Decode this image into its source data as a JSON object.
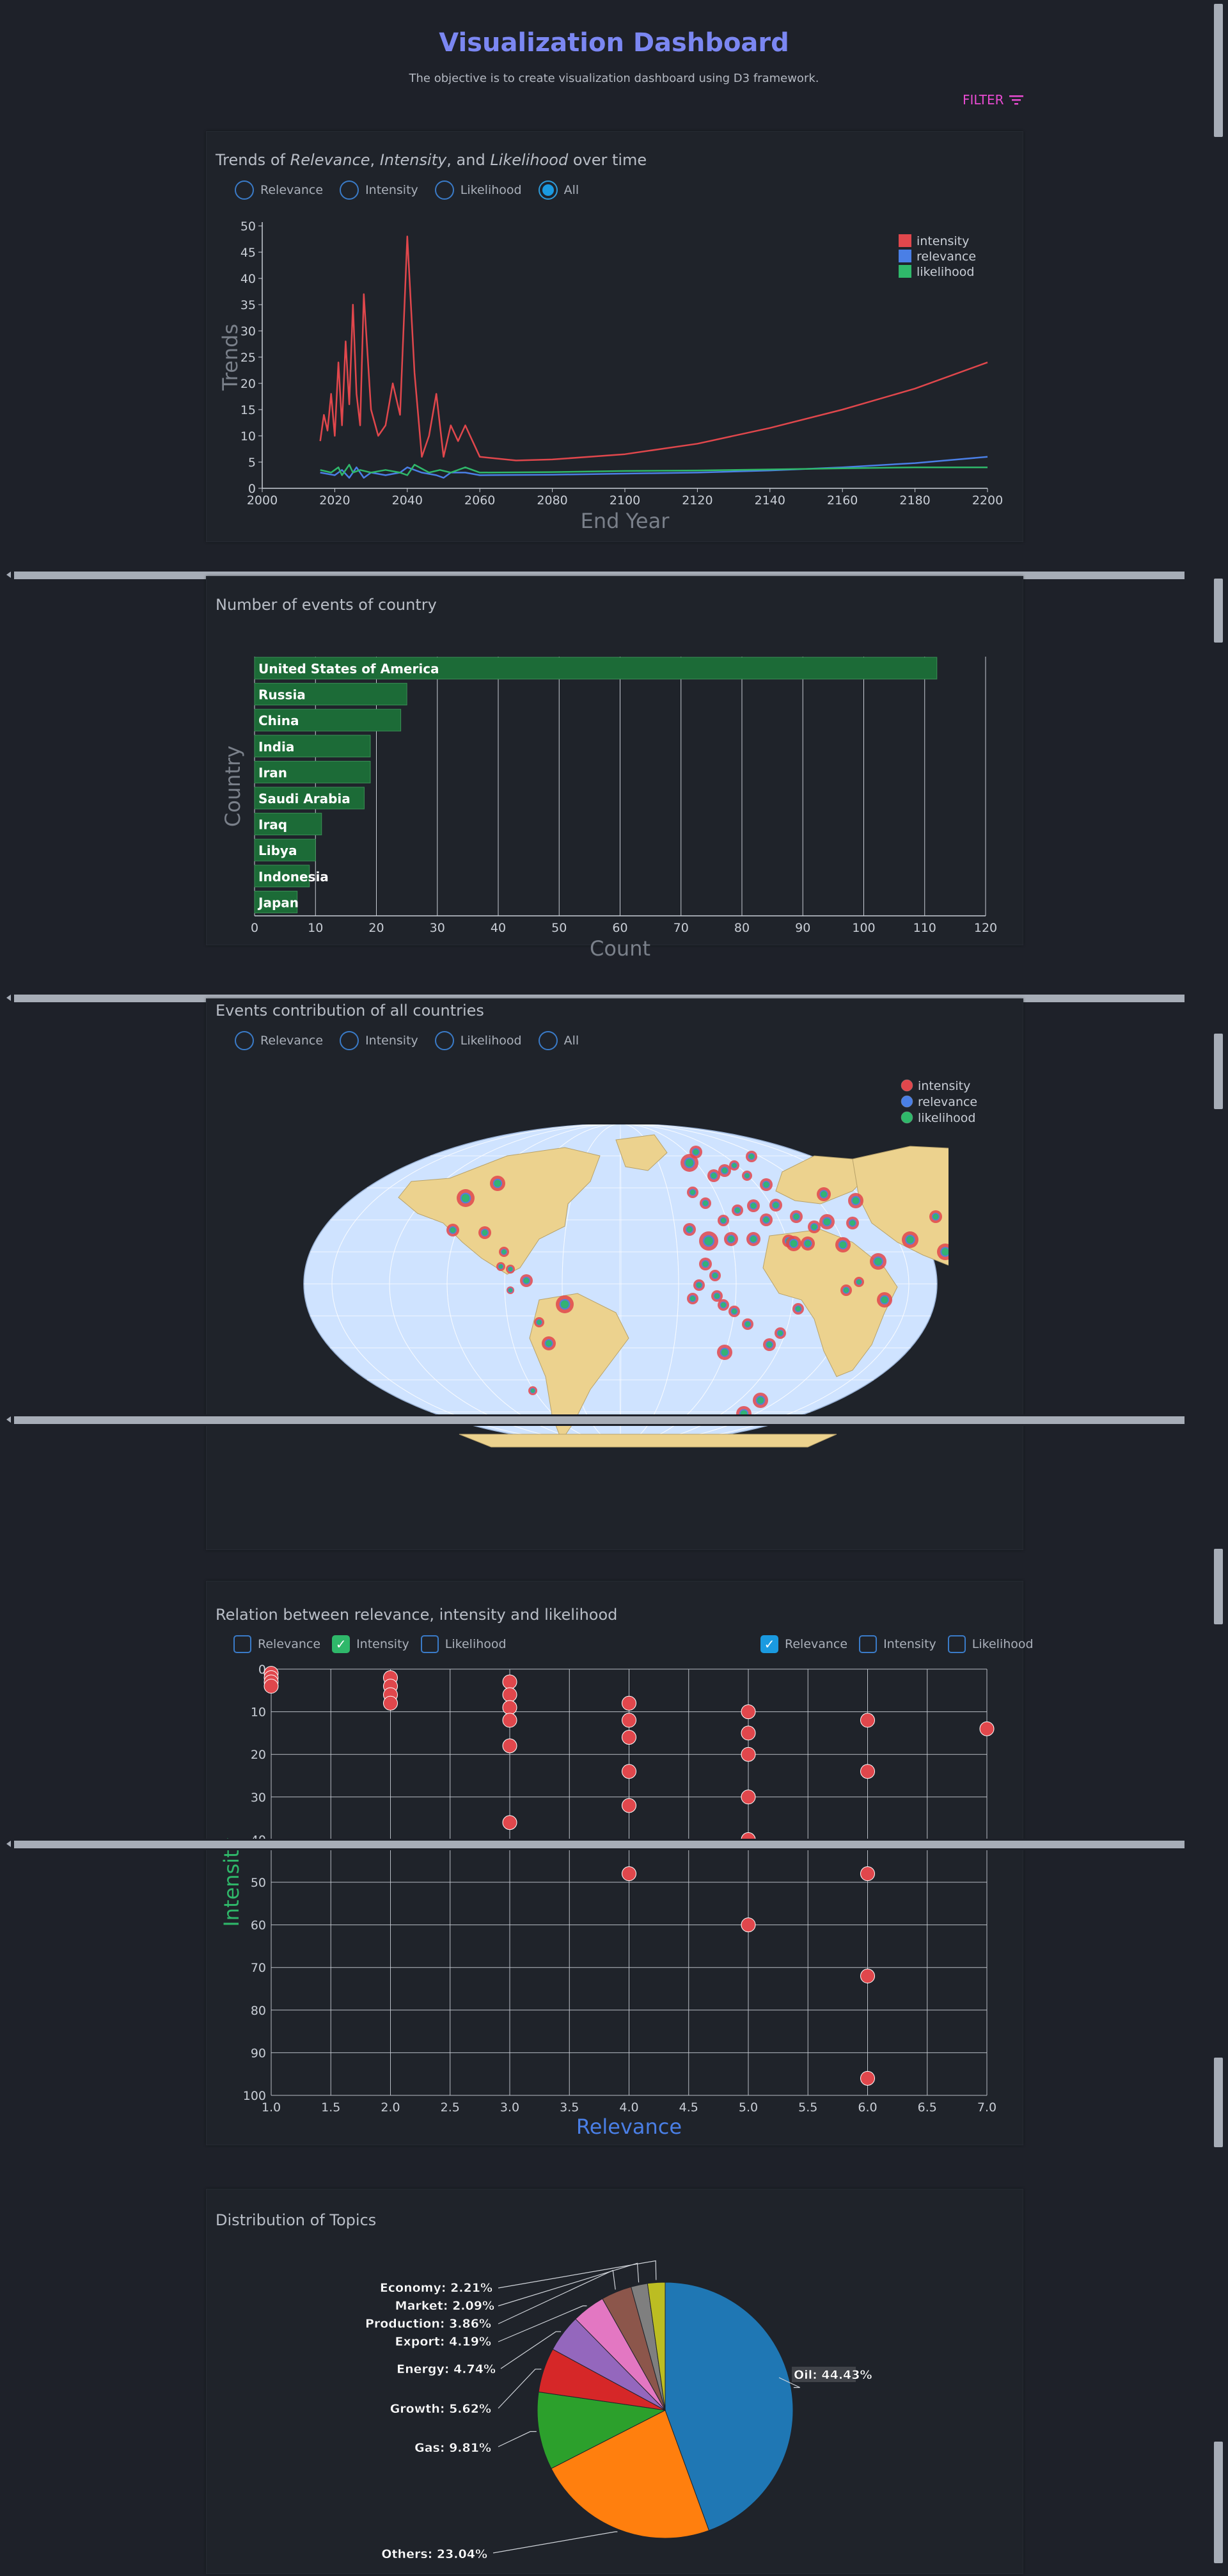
{
  "header": {
    "title": "Visualization Dashboard",
    "subtitle": "The objective is to create visualization dashboard using D3 framework.",
    "filter_label": "FILTER"
  },
  "trends": {
    "title_parts": [
      "Trends of ",
      "Relevance",
      ", ",
      "Intensity",
      ", and ",
      "Likelihood",
      " over time"
    ],
    "radios": [
      {
        "label": "Relevance",
        "checked": false
      },
      {
        "label": "Intensity",
        "checked": false
      },
      {
        "label": "Likelihood",
        "checked": false
      },
      {
        "label": "All",
        "checked": true
      }
    ],
    "chart_data": {
      "type": "line",
      "xlabel": "End Year",
      "ylabel": "Trends",
      "xlim": [
        2000,
        2200
      ],
      "ylim": [
        0,
        50
      ],
      "xticks": [
        2000,
        2020,
        2040,
        2060,
        2080,
        2100,
        2120,
        2140,
        2160,
        2180,
        2200
      ],
      "yticks": [
        0,
        5,
        10,
        15,
        20,
        25,
        30,
        35,
        40,
        45,
        50
      ],
      "legend": [
        "intensity",
        "relevance",
        "likelihood"
      ],
      "colors": {
        "intensity": "#e0474c",
        "relevance": "#4a7fe6",
        "likelihood": "#2fb86a"
      },
      "series": [
        {
          "name": "intensity",
          "x": [
            2016,
            2017,
            2018,
            2019,
            2020,
            2021,
            2022,
            2023,
            2024,
            2025,
            2026,
            2027,
            2028,
            2030,
            2032,
            2034,
            2036,
            2038,
            2040,
            2042,
            2044,
            2046,
            2048,
            2050,
            2052,
            2054,
            2056,
            2060,
            2070,
            2080,
            2100,
            2120,
            2140,
            2160,
            2180,
            2200
          ],
          "y": [
            9,
            14,
            11,
            18,
            10,
            24,
            12,
            28,
            16,
            35,
            18,
            12,
            37,
            15,
            10,
            12,
            20,
            14,
            48,
            22,
            6,
            10,
            18,
            6,
            12,
            9,
            12,
            6,
            5.3,
            5.5,
            6.5,
            8.5,
            11.5,
            15,
            19,
            24
          ]
        },
        {
          "name": "relevance",
          "x": [
            2016,
            2020,
            2022,
            2024,
            2026,
            2028,
            2030,
            2034,
            2038,
            2040,
            2044,
            2048,
            2050,
            2052,
            2056,
            2060,
            2080,
            2100,
            2120,
            2140,
            2160,
            2180,
            2200
          ],
          "y": [
            3,
            2.5,
            3.5,
            2,
            4,
            2,
            3,
            2.5,
            3,
            4,
            3,
            2.5,
            2,
            3,
            3,
            2.5,
            2.6,
            2.8,
            3,
            3.4,
            4,
            4.8,
            6
          ]
        },
        {
          "name": "likelihood",
          "x": [
            2016,
            2019,
            2021,
            2022,
            2024,
            2025,
            2027,
            2030,
            2034,
            2038,
            2040,
            2042,
            2046,
            2049,
            2052,
            2056,
            2060,
            2080,
            2100,
            2120,
            2140,
            2160,
            2180,
            2200
          ],
          "y": [
            3.5,
            3,
            4,
            2.5,
            4.5,
            3,
            3.5,
            3,
            3.5,
            3,
            2.5,
            4.5,
            3,
            3.5,
            3,
            4,
            3,
            3.1,
            3.3,
            3.4,
            3.6,
            3.8,
            4,
            4
          ]
        }
      ]
    }
  },
  "countries": {
    "title": "Number of events of country",
    "chart_data": {
      "type": "bar",
      "orientation": "horizontal",
      "xlabel": "Count",
      "ylabel": "Country",
      "xlim": [
        0,
        120
      ],
      "xticks": [
        0,
        10,
        20,
        30,
        40,
        50,
        60,
        70,
        80,
        90,
        100,
        110,
        120
      ],
      "categories": [
        "United States of America",
        "Russia",
        "China",
        "India",
        "Iran",
        "Saudi Arabia",
        "Iraq",
        "Libya",
        "Indonesia",
        "Japan"
      ],
      "values": [
        112,
        25,
        24,
        19,
        19,
        18,
        11,
        10,
        9,
        7
      ],
      "color": "#1c6b37"
    }
  },
  "map": {
    "title": "Events contribution of all countries",
    "radios": [
      {
        "label": "Relevance",
        "checked": false
      },
      {
        "label": "Intensity",
        "checked": false
      },
      {
        "label": "Likelihood",
        "checked": false
      },
      {
        "label": "All",
        "checked": false
      }
    ],
    "legend": [
      "intensity",
      "relevance",
      "likelihood"
    ],
    "colors": {
      "ocean": "#cfe3ff",
      "land": "#ecd28e",
      "intensity": "#e0474c",
      "relevance": "#4a7fe6",
      "likelihood": "#2fb86a"
    }
  },
  "relation": {
    "title": "Relation between relevance, intensity and likelihood",
    "y_checks": [
      {
        "label": "Relevance",
        "checked": false
      },
      {
        "label": "Intensity",
        "checked": true
      },
      {
        "label": "Likelihood",
        "checked": false
      }
    ],
    "x_checks": [
      {
        "label": "Relevance",
        "checked": true
      },
      {
        "label": "Intensity",
        "checked": false
      },
      {
        "label": "Likelihood",
        "checked": false
      }
    ],
    "chart_data": {
      "type": "scatter",
      "xlabel": "Relevance",
      "ylabel": "Intensity",
      "xlim": [
        1,
        7
      ],
      "ylim": [
        0,
        100
      ],
      "xticks": [
        "1.0",
        "1.5",
        "2.0",
        "2.5",
        "3.0",
        "3.5",
        "4.0",
        "4.5",
        "5.0",
        "5.5",
        "6.0",
        "6.5",
        "7.0"
      ],
      "yticks": [
        0,
        10,
        20,
        30,
        40,
        50,
        60,
        70,
        80,
        90,
        100
      ],
      "points": [
        [
          1,
          1
        ],
        [
          1,
          2
        ],
        [
          1,
          3
        ],
        [
          1,
          4
        ],
        [
          2,
          2
        ],
        [
          2,
          4
        ],
        [
          2,
          6
        ],
        [
          2,
          8
        ],
        [
          3,
          3
        ],
        [
          3,
          6
        ],
        [
          3,
          9
        ],
        [
          3,
          12
        ],
        [
          3,
          18
        ],
        [
          3,
          36
        ],
        [
          4,
          8
        ],
        [
          4,
          12
        ],
        [
          4,
          16
        ],
        [
          4,
          24
        ],
        [
          4,
          32
        ],
        [
          4,
          48
        ],
        [
          5,
          10
        ],
        [
          5,
          15
        ],
        [
          5,
          20
        ],
        [
          5,
          30
        ],
        [
          5,
          40
        ],
        [
          5,
          60
        ],
        [
          6,
          12
        ],
        [
          6,
          24
        ],
        [
          6,
          48
        ],
        [
          6,
          72
        ],
        [
          6,
          96
        ],
        [
          7,
          14
        ]
      ],
      "color": "#e0474c"
    }
  },
  "topics": {
    "title": "Distribution of Topics",
    "chart_data": {
      "type": "pie",
      "labels": [
        "Oil: 44.43%",
        "Others: 23.04%",
        "Gas: 9.81%",
        "Growth: 5.62%",
        "Energy: 4.74%",
        "Export: 4.19%",
        "Production: 3.86%",
        "Market: 2.09%",
        "Economy: 2.21%"
      ],
      "values": [
        44.43,
        23.04,
        9.81,
        5.62,
        4.74,
        4.19,
        3.86,
        2.09,
        2.21
      ],
      "colors": [
        "#1f77b4",
        "#ff7f0e",
        "#2ca02c",
        "#d62728",
        "#9467bd",
        "#e377c2",
        "#8c564b",
        "#7f7f7f",
        "#bcbd22"
      ]
    }
  }
}
